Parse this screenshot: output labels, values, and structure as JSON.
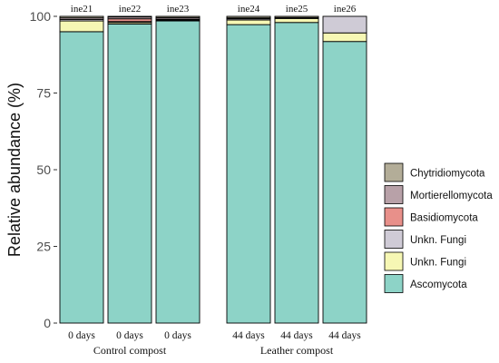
{
  "chart_data": {
    "type": "bar",
    "stacked": true,
    "ylabel": "Relative abundance (%)",
    "ylim": [
      0,
      100
    ],
    "yticks": [
      "0",
      "25",
      "50",
      "75",
      "100"
    ],
    "grid": false,
    "legend_position": "right",
    "panels": [
      {
        "title": "Control compost",
        "bars": [
          {
            "sample": "ine21",
            "x_label": "0 days",
            "values": {
              "Ascomycota": 95.0,
              "Unkn. Fungi (yellow)": 3.5,
              "Unkn. Fungi (lavender)": 0.5,
              "Basidiomycota": 0.0,
              "Mortierellomycota": 0.5,
              "Chytridiomycota": 0.5
            }
          },
          {
            "sample": "ine22",
            "x_label": "0 days",
            "values": {
              "Ascomycota": 97.5,
              "Unkn. Fungi (yellow)": 0.5,
              "Unkn. Fungi (lavender)": 0.3,
              "Basidiomycota": 0.9,
              "Mortierellomycota": 0.6,
              "Chytridiomycota": 0.2
            }
          },
          {
            "sample": "ine23",
            "x_label": "0 days",
            "values": {
              "Ascomycota": 98.5,
              "Unkn. Fungi (yellow)": 0.2,
              "Unkn. Fungi (lavender)": 0.2,
              "Basidiomycota": 0.2,
              "Mortierellomycota": 0.5,
              "Chytridiomycota": 0.4
            }
          }
        ]
      },
      {
        "title": "Leather compost",
        "bars": [
          {
            "sample": "ine24",
            "x_label": "44 days",
            "values": {
              "Ascomycota": 97.3,
              "Unkn. Fungi (yellow)": 1.5,
              "Unkn. Fungi (lavender)": 0.4,
              "Basidiomycota": 0.1,
              "Mortierellomycota": 0.2,
              "Chytridiomycota": 0.5
            }
          },
          {
            "sample": "ine25",
            "x_label": "44 days",
            "values": {
              "Ascomycota": 98.0,
              "Unkn. Fungi (yellow)": 1.3,
              "Unkn. Fungi (lavender)": 0.3,
              "Basidiomycota": 0.0,
              "Mortierellomycota": 0.0,
              "Chytridiomycota": 0.4
            }
          },
          {
            "sample": "ine26",
            "x_label": "44 days",
            "values": {
              "Ascomycota": 91.8,
              "Unkn. Fungi (yellow)": 2.8,
              "Unkn. Fungi (lavender)": 5.4,
              "Basidiomycota": 0.0,
              "Mortierellomycota": 0.0,
              "Chytridiomycota": 0.0
            }
          }
        ]
      }
    ],
    "series_order": [
      "Ascomycota",
      "Unkn. Fungi (yellow)",
      "Unkn. Fungi (lavender)",
      "Basidiomycota",
      "Mortierellomycota",
      "Chytridiomycota"
    ],
    "legend": [
      {
        "key": "Chytridiomycota",
        "label": "Chytridiomycota",
        "color": "#b3ad98"
      },
      {
        "key": "Mortierellomycota",
        "label": "Mortierellomycota",
        "color": "#b8a1a8"
      },
      {
        "key": "Basidiomycota",
        "label": "Basidiomycota",
        "color": "#e8908a"
      },
      {
        "key": "Unkn. Fungi (lavender)",
        "label": "Unkn. Fungi",
        "color": "#cfcbd6"
      },
      {
        "key": "Unkn. Fungi (yellow)",
        "label": "Unkn. Fungi",
        "color": "#f6f7b4"
      },
      {
        "key": "Ascomycota",
        "label": "Ascomycota",
        "color": "#8dd3c7"
      }
    ]
  }
}
